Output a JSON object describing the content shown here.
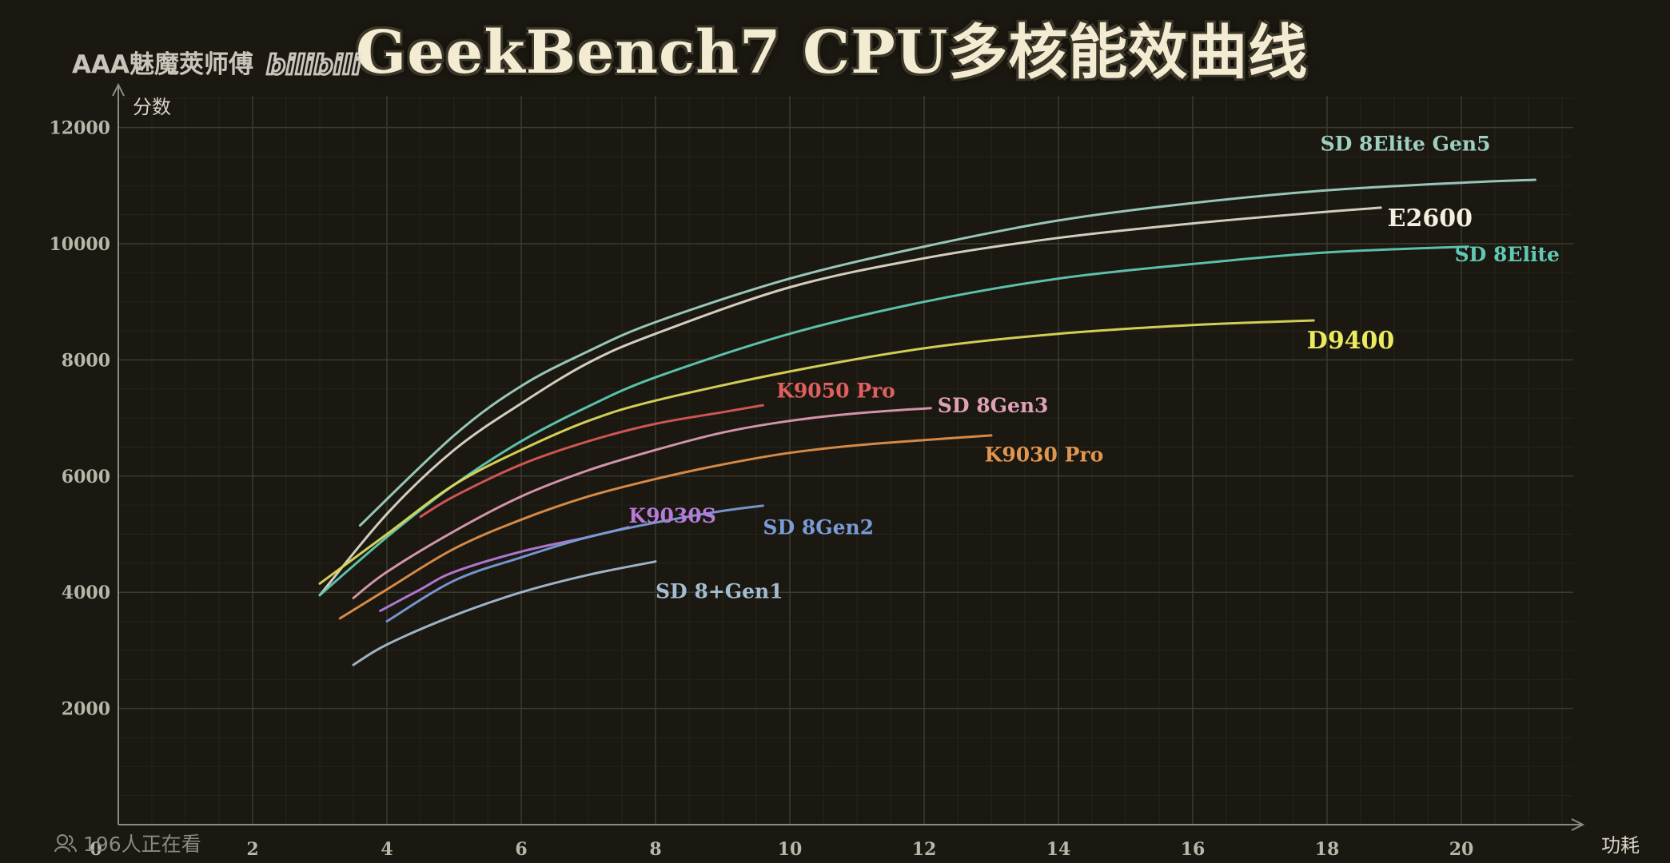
{
  "title": "GeekBench7 CPU多核能效曲线",
  "watermark": {
    "text": "AAA魅魔莢师傅",
    "logo_text": "bilibili",
    "logo_icon": "bilibili-logo-icon"
  },
  "overlay": {
    "viewers_text": "196人正在看",
    "viewers_icon": "viewers-icon"
  },
  "colors": {
    "background": "#1a1810",
    "grid": "#3b3a2e",
    "axis": "#8d8b80",
    "tick_label": "#b9b6aa"
  },
  "chart_data": {
    "type": "line",
    "title": "GeekBench7 CPU多核能效曲线",
    "xlabel": "功耗",
    "ylabel": "分数",
    "xlim": [
      0,
      21.5
    ],
    "ylim": [
      0,
      12500
    ],
    "xticks": [
      0,
      2,
      4,
      6,
      8,
      10,
      12,
      14,
      16,
      18,
      20
    ],
    "yticks": [
      2000,
      4000,
      6000,
      8000,
      10000,
      12000
    ],
    "grid": true,
    "legend": "labels at line ends",
    "series": [
      {
        "name": "SD 8Elite Gen5",
        "color": "#9ed0c2",
        "x": [
          3.6,
          5,
          6,
          7,
          8,
          10,
          12,
          14,
          16,
          18,
          20,
          21.1
        ],
        "y": [
          5150,
          6700,
          7550,
          8150,
          8650,
          9400,
          9950,
          10400,
          10700,
          10920,
          11050,
          11100
        ]
      },
      {
        "name": "E2600",
        "color": "#dcd8c8",
        "x": [
          3.0,
          4,
          5,
          6,
          7,
          8,
          10,
          12,
          14,
          16,
          18,
          18.8
        ],
        "y": [
          3950,
          5350,
          6450,
          7250,
          7950,
          8450,
          9250,
          9750,
          10100,
          10350,
          10550,
          10620
        ]
      },
      {
        "name": "SD 8Elite",
        "color": "#5fc9b4",
        "x": [
          3.0,
          4,
          5,
          6,
          7,
          8,
          10,
          12,
          14,
          16,
          18,
          20.1
        ],
        "y": [
          3950,
          4950,
          5850,
          6600,
          7200,
          7700,
          8450,
          9000,
          9400,
          9650,
          9850,
          9950
        ]
      },
      {
        "name": "D9400",
        "color": "#dcd85a",
        "x": [
          3.0,
          4,
          5,
          6,
          7,
          8,
          10,
          12,
          14,
          16,
          17.8
        ],
        "y": [
          4150,
          5000,
          5850,
          6450,
          6950,
          7300,
          7800,
          8200,
          8450,
          8600,
          8680
        ]
      },
      {
        "name": "K9050 Pro",
        "color": "#d8595a",
        "x": [
          4.5,
          5,
          6,
          7,
          8,
          9,
          9.6
        ],
        "y": [
          5300,
          5650,
          6200,
          6600,
          6900,
          7100,
          7220
        ]
      },
      {
        "name": "SD 8Gen3",
        "color": "#dc9ab4",
        "x": [
          3.5,
          4,
          5,
          6,
          7,
          8,
          9,
          10,
          11,
          12.1
        ],
        "y": [
          3900,
          4350,
          5050,
          5650,
          6100,
          6450,
          6750,
          6950,
          7080,
          7170
        ]
      },
      {
        "name": "K9030 Pro",
        "color": "#e08f4a",
        "x": [
          3.3,
          4,
          5,
          6,
          7,
          8,
          9,
          10,
          11,
          12,
          13
        ],
        "y": [
          3550,
          4050,
          4750,
          5250,
          5650,
          5950,
          6200,
          6400,
          6530,
          6620,
          6700
        ]
      },
      {
        "name": "K9030S",
        "color": "#b67bd8",
        "x": [
          3.9,
          4.5,
          5,
          6,
          7,
          7.6
        ],
        "y": [
          3680,
          4050,
          4350,
          4700,
          4950,
          5120
        ]
      },
      {
        "name": "SD 8Gen2",
        "color": "#7a9ad8",
        "x": [
          4.0,
          5,
          6,
          7,
          8,
          9,
          9.6
        ],
        "y": [
          3500,
          4200,
          4600,
          4950,
          5200,
          5400,
          5490
        ]
      },
      {
        "name": "SD 8+Gen1",
        "color": "#a3bcd0",
        "x": [
          3.5,
          4,
          5,
          6,
          7,
          8
        ],
        "y": [
          2750,
          3100,
          3600,
          4000,
          4300,
          4530
        ]
      }
    ],
    "labels": [
      {
        "text": "SD 8Elite Gen5",
        "series": "SD 8Elite Gen5",
        "at": [
          17.9,
          11600
        ],
        "color": "#9ed0c2"
      },
      {
        "text": "E2600",
        "series": "E2600",
        "at": [
          18.9,
          10300
        ],
        "color": "#f4f0e0"
      },
      {
        "text": "SD 8Elite",
        "series": "SD 8Elite",
        "at": [
          19.9,
          9700
        ],
        "color": "#5fc9b4"
      },
      {
        "text": "D9400",
        "series": "D9400",
        "at": [
          17.7,
          8200
        ],
        "color": "#ecea60"
      },
      {
        "text": "K9050 Pro",
        "series": "K9050 Pro",
        "at": [
          9.8,
          7350
        ],
        "color": "#e0605e"
      },
      {
        "text": "SD 8Gen3",
        "series": "SD 8Gen3",
        "at": [
          12.2,
          7100
        ],
        "color": "#e0a0b8"
      },
      {
        "text": "K9030 Pro",
        "series": "K9030 Pro",
        "at": [
          12.9,
          6250
        ],
        "color": "#e09550"
      },
      {
        "text": "K9030S",
        "series": "K9030S",
        "at": [
          7.6,
          5200
        ],
        "color": "#b67bd8"
      },
      {
        "text": "SD 8Gen2",
        "series": "SD 8Gen2",
        "at": [
          9.6,
          5000
        ],
        "color": "#7a9ad8"
      },
      {
        "text": "SD 8+Gen1",
        "series": "SD 8+Gen1",
        "at": [
          8.0,
          3900
        ],
        "color": "#a3bcd0"
      }
    ]
  }
}
